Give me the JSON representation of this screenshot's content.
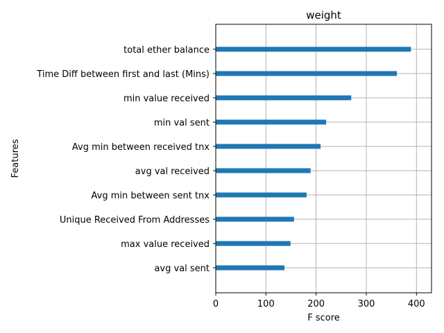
{
  "chart_data": {
    "type": "bar",
    "orientation": "horizontal",
    "title": "weight",
    "xlabel": "F score",
    "ylabel": "Features",
    "xlim": [
      0,
      430
    ],
    "x_ticks": [
      0,
      100,
      200,
      300,
      400
    ],
    "grid": true,
    "bar_color": "#1f77b4",
    "categories": [
      "avg val sent",
      "max value received ",
      "Unique Received From Addresses",
      "Avg min between sent tnx",
      "avg val received",
      "Avg min between received tnx",
      "min val sent",
      "min value received",
      "Time Diff between first and last (Mins)",
      "total ether balance"
    ],
    "values": [
      137,
      149,
      156,
      181,
      189,
      209,
      220,
      270,
      361,
      389
    ]
  }
}
